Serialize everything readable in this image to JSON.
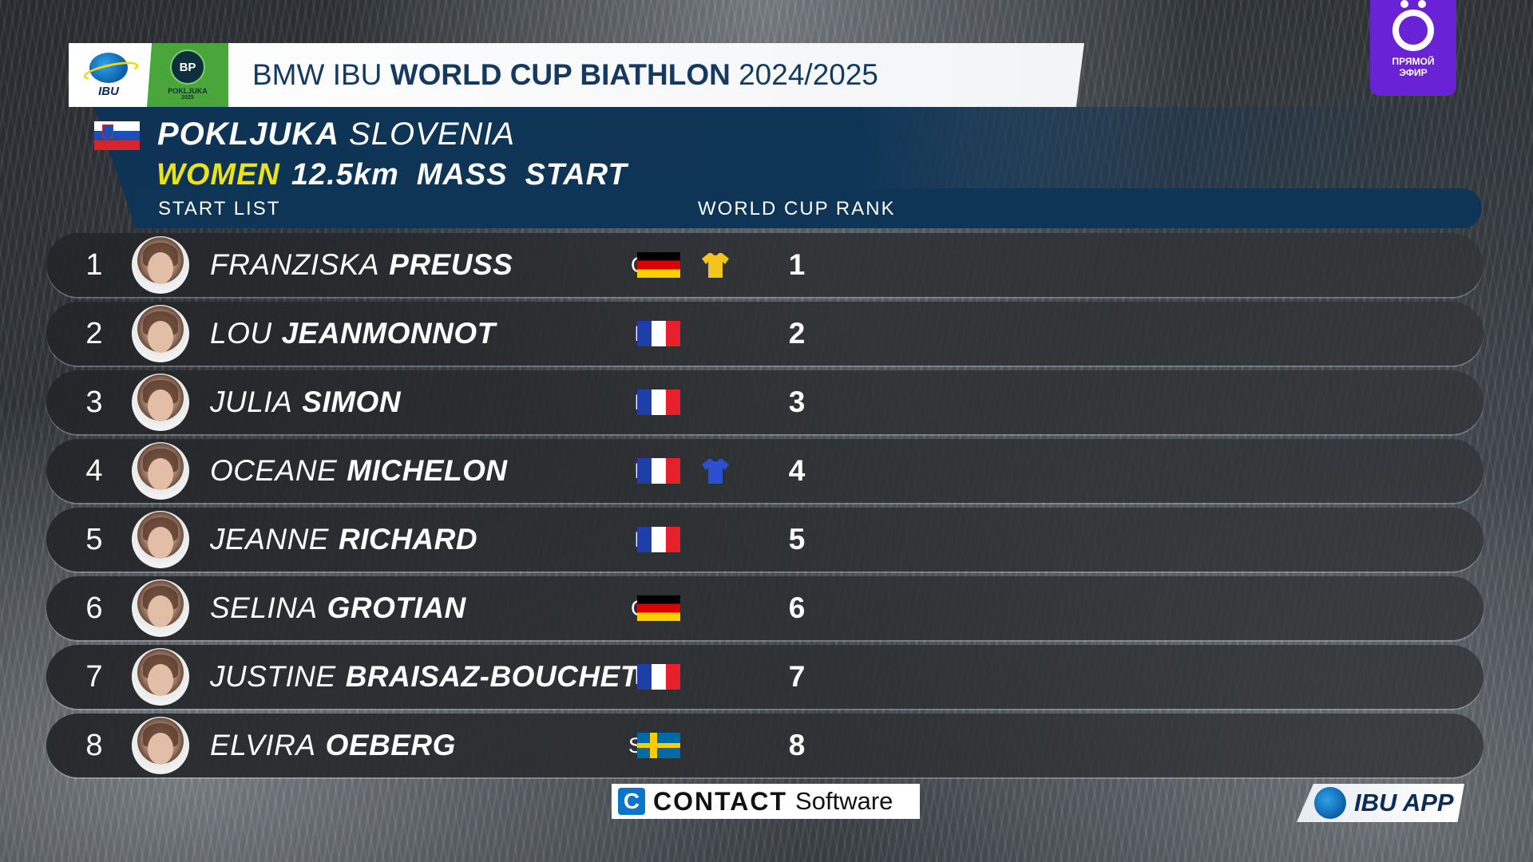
{
  "header": {
    "title_pre": "BMW IBU",
    "title_bold": "WORLD CUP BIATHLON",
    "title_post": "2024/2025",
    "ibu_logo_text": "IBU",
    "pokljuka_logo_text": "POKLJUKA",
    "pokljuka_logo_year": "2025",
    "pokljuka_logo_badge": "BP"
  },
  "event": {
    "venue": "POKLJUKA",
    "country": "SLOVENIA",
    "gender": "WOMEN",
    "distance": "12.5km",
    "format_1": "MASS",
    "format_2": "START",
    "list_label": "START LIST",
    "rank_label": "WORLD CUP RANK"
  },
  "athletes": [
    {
      "pos": "1",
      "first": "FRANZISKA",
      "last": "PREUSS",
      "nat": "GER",
      "flag": "ger",
      "bib": "yellow",
      "rank": "1"
    },
    {
      "pos": "2",
      "first": "LOU",
      "last": "JEANMONNOT",
      "nat": "FRA",
      "flag": "fra",
      "bib": "",
      "rank": "2"
    },
    {
      "pos": "3",
      "first": "JULIA",
      "last": "SIMON",
      "nat": "FRA",
      "flag": "fra",
      "bib": "",
      "rank": "3"
    },
    {
      "pos": "4",
      "first": "OCEANE",
      "last": "MICHELON",
      "nat": "FRA",
      "flag": "fra",
      "bib": "blue",
      "rank": "4"
    },
    {
      "pos": "5",
      "first": "JEANNE",
      "last": "RICHARD",
      "nat": "FRA",
      "flag": "fra",
      "bib": "",
      "rank": "5"
    },
    {
      "pos": "6",
      "first": "SELINA",
      "last": "GROTIAN",
      "nat": "GER",
      "flag": "ger",
      "bib": "",
      "rank": "6"
    },
    {
      "pos": "7",
      "first": "JUSTINE",
      "last": "BRAISAZ-BOUCHET",
      "nat": "FRA",
      "flag": "fra",
      "bib": "",
      "rank": "7"
    },
    {
      "pos": "8",
      "first": "ELVIRA",
      "last": "OEBERG",
      "nat": "SWE",
      "flag": "swe",
      "bib": "",
      "rank": "8"
    }
  ],
  "sponsor": {
    "icon_letter": "C",
    "brand": "CONTACT",
    "suffix": "Software"
  },
  "ibu_app": {
    "label": "IBU APP"
  },
  "live_badge": {
    "line1": "ПРЯМОЙ",
    "line2": "ЭФИР"
  },
  "colors": {
    "header_text": "#163a5f",
    "panel_blue": "#0f3556",
    "gender_yellow": "#e9e21c",
    "yellow_bib": "#f2c51c",
    "blue_bib": "#2a4fd1",
    "live_purple": "#6a22d6"
  }
}
